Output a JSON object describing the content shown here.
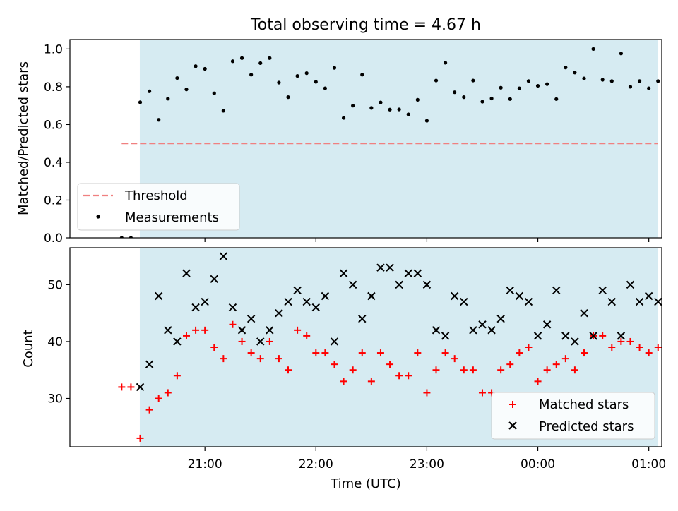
{
  "chart_data": {
    "title": "Total observing time = 4.67 h",
    "xlabel": "Time (UTC)",
    "x_ticks": [
      "21:00",
      "22:00",
      "23:00",
      "00:00",
      "01:00"
    ],
    "x_unit": "minutes after 20:00 UTC",
    "x_tick_positions": [
      60,
      120,
      180,
      240,
      300
    ],
    "xlim": [
      -13,
      307
    ],
    "observing_window": [
      24.8,
      305
    ],
    "shade_color": "#add8e6",
    "panels": [
      {
        "type": "scatter",
        "ylabel": "Matched/Predicted stars",
        "ylim": [
          0,
          1.05
        ],
        "y_ticks": [
          "0.0",
          "0.2",
          "0.4",
          "0.6",
          "0.8",
          "1.0"
        ],
        "y_tick_values": [
          0,
          0.2,
          0.4,
          0.6,
          0.8,
          1.0
        ],
        "threshold": {
          "name": "Threshold",
          "value": 0.5,
          "x_range": [
            15,
            305
          ],
          "color": "#f08080"
        },
        "legend": {
          "placement": "lower-left",
          "entries": [
            "Threshold",
            "Measurements"
          ]
        },
        "series": [
          {
            "name": "Measurements",
            "color": "#000000",
            "x": [
              15,
              20,
              25,
              30,
              35,
              40,
              45,
              50,
              55,
              60,
              65,
              70,
              75,
              80,
              85,
              90,
              95,
              100,
              105,
              110,
              115,
              120,
              125,
              130,
              135,
              140,
              145,
              150,
              155,
              160,
              165,
              170,
              175,
              180,
              185,
              190,
              195,
              200,
              205,
              210,
              215,
              220,
              225,
              230,
              235,
              240,
              245,
              250,
              255,
              260,
              265,
              270,
              275,
              280,
              285,
              290,
              295,
              300,
              305
            ],
            "y": [
              0.0,
              0.0,
              0.718,
              0.776,
              0.625,
              0.737,
              0.846,
              0.786,
              0.909,
              0.895,
              0.765,
              0.673,
              0.935,
              0.952,
              0.864,
              0.925,
              0.952,
              0.822,
              0.745,
              0.857,
              0.872,
              0.826,
              0.792,
              0.9,
              0.635,
              0.7,
              0.864,
              0.688,
              0.717,
              0.679,
              0.68,
              0.654,
              0.731,
              0.62,
              0.833,
              0.927,
              0.771,
              0.745,
              0.833,
              0.721,
              0.738,
              0.795,
              0.735,
              0.792,
              0.83,
              0.805,
              0.814,
              0.735,
              0.902,
              0.875,
              0.844,
              1.0,
              0.837,
              0.83,
              0.976,
              0.8,
              0.83,
              0.792,
              0.83
            ]
          }
        ]
      },
      {
        "type": "scatter",
        "ylabel": "Count",
        "ylim": [
          21.5,
          56.5
        ],
        "y_ticks": [
          "30",
          "40",
          "50"
        ],
        "y_tick_values": [
          30,
          40,
          50
        ],
        "legend": {
          "placement": "lower-right",
          "entries": [
            "Matched stars",
            "Predicted stars"
          ]
        },
        "series": [
          {
            "name": "Matched stars",
            "marker": "plus",
            "color": "#ff0000",
            "x": [
              15,
              20,
              25,
              30,
              35,
              40,
              45,
              50,
              55,
              60,
              65,
              70,
              75,
              80,
              85,
              90,
              95,
              100,
              105,
              110,
              115,
              120,
              125,
              130,
              135,
              140,
              145,
              150,
              155,
              160,
              165,
              170,
              175,
              180,
              185,
              190,
              195,
              200,
              205,
              210,
              215,
              220,
              225,
              230,
              235,
              240,
              245,
              250,
              255,
              260,
              265,
              270,
              275,
              280,
              285,
              290,
              295,
              300,
              305
            ],
            "y": [
              32,
              32,
              23,
              28,
              30,
              31,
              34,
              41,
              42,
              42,
              39,
              37,
              43,
              40,
              38,
              37,
              40,
              37,
              35,
              42,
              41,
              38,
              38,
              36,
              33,
              35,
              38,
              33,
              38,
              36,
              34,
              34,
              38,
              31,
              35,
              38,
              37,
              35,
              35,
              31,
              31,
              35,
              36,
              38,
              39,
              33,
              35,
              36,
              37,
              35,
              38,
              41,
              41,
              39,
              40,
              40,
              39,
              38,
              39
            ]
          },
          {
            "name": "Predicted stars",
            "marker": "x",
            "color": "#000000",
            "x": [
              25,
              30,
              35,
              40,
              45,
              50,
              55,
              60,
              65,
              70,
              75,
              80,
              85,
              90,
              95,
              100,
              105,
              110,
              115,
              120,
              125,
              130,
              135,
              140,
              145,
              150,
              155,
              160,
              165,
              170,
              175,
              180,
              185,
              190,
              195,
              200,
              205,
              210,
              215,
              220,
              225,
              230,
              235,
              240,
              245,
              250,
              255,
              260,
              265,
              270,
              275,
              280,
              285,
              290,
              295,
              300,
              305
            ],
            "y": [
              32,
              36,
              48,
              42,
              40,
              52,
              46,
              47,
              51,
              55,
              46,
              42,
              44,
              40,
              42,
              45,
              47,
              49,
              47,
              46,
              48,
              40,
              52,
              50,
              44,
              48,
              53,
              53,
              50,
              52,
              52,
              50,
              42,
              41,
              48,
              47,
              42,
              43,
              42,
              44,
              49,
              48,
              47,
              41,
              43,
              49,
              41,
              40,
              45,
              41,
              49,
              47,
              41,
              50,
              47,
              48,
              47
            ]
          }
        ]
      }
    ]
  }
}
